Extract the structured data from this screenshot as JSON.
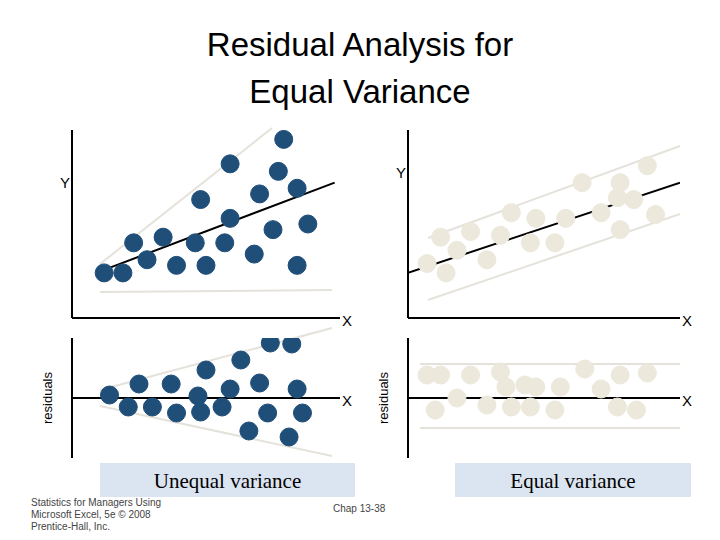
{
  "slide": {
    "title": [
      "Residual Analysis for",
      "Equal Variance"
    ],
    "captions": [
      "Unequal variance",
      "Equal variance"
    ],
    "footer": [
      "Statistics for Managers Using",
      "Microsoft Excel, 5e © 2008",
      "Prentice-Hall, Inc."
    ],
    "page": "Chap 13-38"
  },
  "chart_data": [
    {
      "type": "scatter",
      "x_label": "X",
      "y_label": "Y",
      "xlim": [
        0,
        100
      ],
      "ylim": [
        0,
        100
      ],
      "tick_labels": false,
      "color": "#1f4e79",
      "x": [
        12,
        19,
        28,
        23,
        34,
        39,
        46,
        50,
        57,
        68,
        48,
        59,
        75,
        84,
        70,
        77,
        84,
        88,
        59,
        79
      ],
      "values": [
        24,
        24,
        31,
        40,
        43,
        28,
        40,
        28,
        40,
        34,
        63,
        53,
        47,
        28,
        66,
        78,
        69,
        50,
        82,
        95
      ],
      "trend_line": {
        "x": [
          9,
          98
        ],
        "values": [
          24,
          72
        ]
      }
    },
    {
      "type": "scatter",
      "x_label": "X",
      "y_label": "residuals",
      "xlim": [
        0,
        100
      ],
      "ylim": [
        -60,
        60
      ],
      "tick_labels": false,
      "color": "#1f4e79",
      "x": [
        14,
        21,
        25,
        30,
        37,
        39,
        47,
        50,
        48,
        56,
        59,
        63,
        70,
        73,
        66,
        74,
        82,
        84,
        86,
        81
      ],
      "values": [
        3,
        -9,
        14,
        -9,
        14,
        -15,
        2,
        28,
        -14,
        -9,
        9,
        38,
        15,
        -15,
        -33,
        55,
        54,
        9,
        -15,
        -39
      ]
    },
    {
      "type": "scatter",
      "x_label": "X",
      "y_label": "Y",
      "xlim": [
        0,
        100
      ],
      "ylim": [
        0,
        100
      ],
      "tick_labels": false,
      "color": "#ece8dc",
      "x": [
        7,
        14,
        12,
        18,
        23,
        29,
        34,
        38,
        45,
        47,
        54,
        58,
        64,
        71,
        77,
        78,
        83,
        88,
        91,
        78
      ],
      "values": [
        29,
        24,
        43,
        36,
        46,
        31,
        44,
        56,
        40,
        53,
        40,
        53,
        72,
        56,
        64,
        47,
        63,
        81,
        55,
        72
      ],
      "trend_line": {
        "x": [
          0,
          100
        ],
        "values": [
          24,
          72
        ]
      }
    },
    {
      "type": "scatter",
      "x_label": "X",
      "y_label": "residuals",
      "xlim": [
        0,
        100
      ],
      "ylim": [
        -60,
        60
      ],
      "tick_labels": false,
      "color": "#ece8dc",
      "x": [
        7,
        12,
        10,
        18,
        23,
        29,
        34,
        36,
        38,
        43,
        47,
        45,
        54,
        56,
        65,
        71,
        77,
        78,
        84,
        88
      ],
      "values": [
        23,
        23,
        -12,
        0,
        23,
        -7,
        26,
        11,
        -9,
        13,
        11,
        -9,
        -12,
        11,
        29,
        9,
        -9,
        23,
        -12,
        25
      ]
    }
  ]
}
